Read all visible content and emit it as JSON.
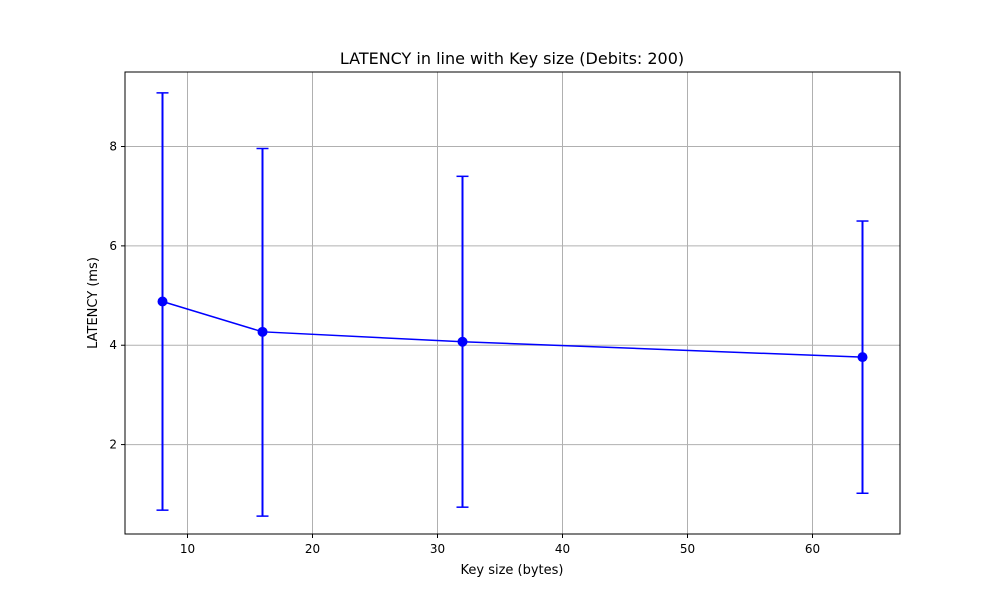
{
  "chart_data": {
    "type": "line",
    "title": "LATENCY in line with Key size (Debits: 200)",
    "xlabel": "Key size (bytes)",
    "ylabel": "LATENCY (ms)",
    "xlim": [
      5,
      67
    ],
    "ylim": [
      0.2,
      9.5
    ],
    "x_ticks": [
      10,
      20,
      30,
      40,
      50,
      60
    ],
    "y_ticks": [
      2,
      4,
      6,
      8
    ],
    "grid": true,
    "series": [
      {
        "color": "#0000ff",
        "x": [
          8,
          16,
          32,
          64
        ],
        "y": [
          4.88,
          4.27,
          4.07,
          3.76
        ],
        "error_low": [
          0.68,
          0.56,
          0.74,
          1.02
        ],
        "error_high": [
          9.08,
          7.96,
          7.4,
          6.5
        ]
      }
    ]
  }
}
